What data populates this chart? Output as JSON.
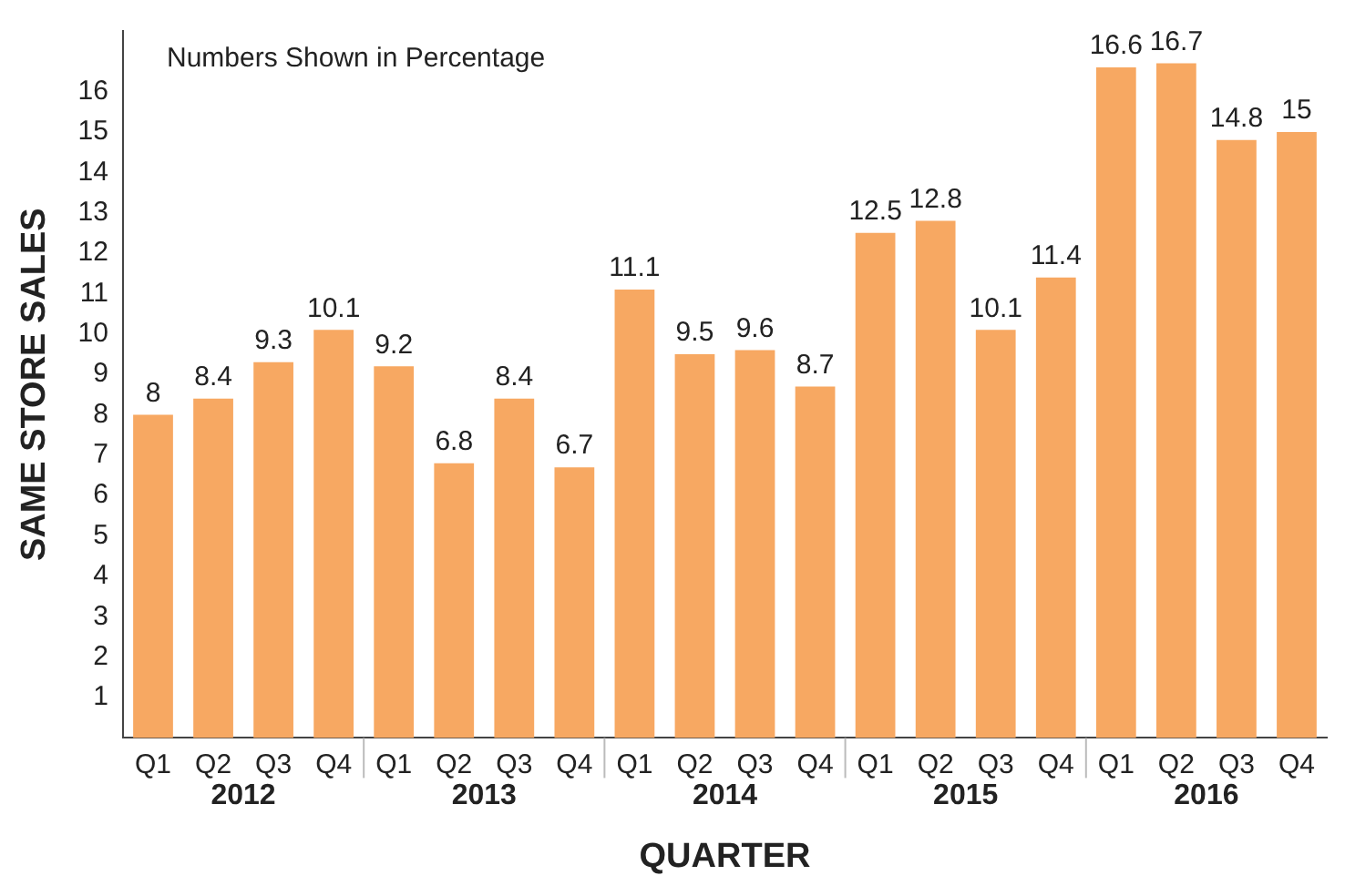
{
  "chart_data": {
    "type": "bar",
    "xlabel": "QUARTER",
    "ylabel": "SAME STORE SALES",
    "categories": [
      "Q1",
      "Q2",
      "Q3",
      "Q4",
      "Q1",
      "Q2",
      "Q3",
      "Q4",
      "Q1",
      "Q2",
      "Q3",
      "Q4",
      "Q1",
      "Q2",
      "Q3",
      "Q4",
      "Q1",
      "Q2",
      "Q3",
      "Q4"
    ],
    "values": [
      8,
      8.4,
      9.3,
      10.1,
      9.2,
      6.8,
      8.4,
      6.7,
      11.1,
      9.5,
      9.6,
      8.7,
      12.5,
      12.8,
      10.1,
      11.4,
      16.6,
      16.7,
      14.8,
      15
    ],
    "color": "#f7a862",
    "ylim": [
      0,
      17.5
    ],
    "yticks": [
      1,
      2,
      3,
      4,
      5,
      6,
      7,
      8,
      9,
      10,
      11,
      12,
      13,
      14,
      15,
      16
    ],
    "data_labels": true,
    "grid": false,
    "legend": false,
    "annotations": [
      "Numbers Shown in Percentage",
      "2012",
      "2013",
      "2014",
      "2015",
      "2016"
    ]
  }
}
